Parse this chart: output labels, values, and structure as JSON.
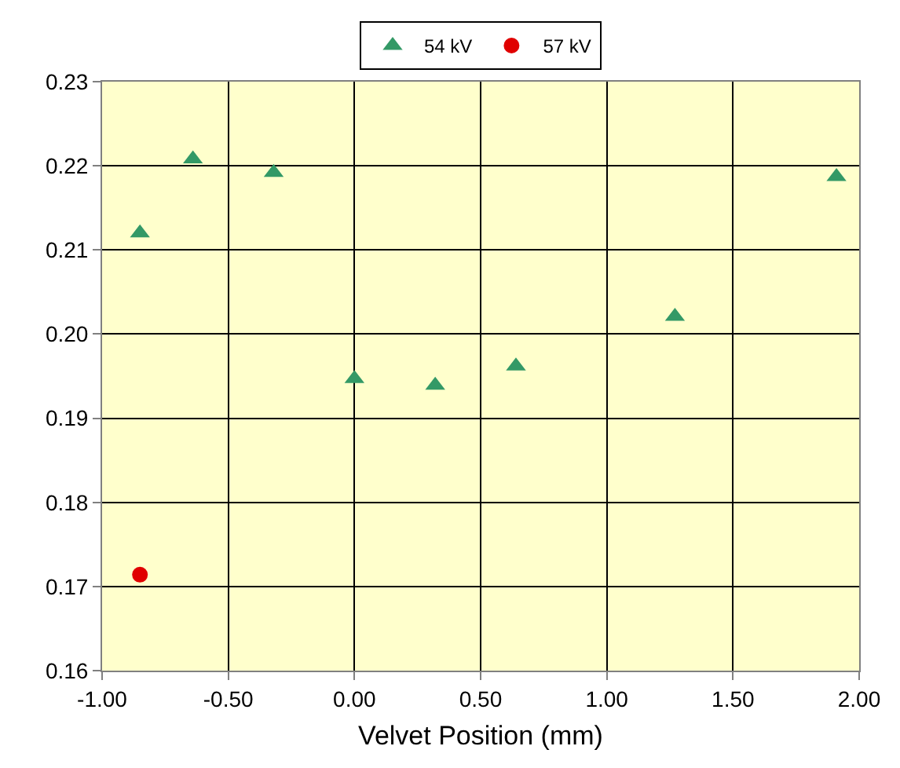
{
  "chart_data": {
    "type": "scatter",
    "xlabel": "Velvet Position (mm)",
    "series": [
      {
        "name": "54 kV",
        "color": "#339966",
        "marker": "triangle",
        "x": [
          -0.85,
          -0.64,
          -0.32,
          0,
          0.32,
          0.64,
          1.27,
          1.91
        ],
        "values": [
          0.212,
          0.2208,
          0.2192,
          0.1947,
          0.1939,
          0.1962,
          0.2021,
          0.2187
        ]
      },
      {
        "name": "57 kV",
        "color": "#e00000",
        "marker": "circle",
        "x": [
          -0.85
        ],
        "values": [
          0.1714
        ]
      }
    ],
    "xlim": [
      -1,
      2
    ],
    "xticks": [
      {
        "value": -1,
        "label": "-1.00"
      },
      {
        "value": -0.5,
        "label": "-0.50"
      },
      {
        "value": 0,
        "label": "0.00"
      },
      {
        "value": 0.5,
        "label": "0.50"
      },
      {
        "value": 1,
        "label": "1.00"
      },
      {
        "value": 1.5,
        "label": "1.50"
      },
      {
        "value": 2,
        "label": "2.00"
      }
    ],
    "ylim": [
      0.16,
      0.23
    ],
    "yticks": [
      {
        "value": 0.16,
        "label": "0.16"
      },
      {
        "value": 0.17,
        "label": "0.17"
      },
      {
        "value": 0.18,
        "label": "0.18"
      },
      {
        "value": 0.19,
        "label": "0.19"
      },
      {
        "value": 0.2,
        "label": "0.20"
      },
      {
        "value": 0.21,
        "label": "0.21"
      },
      {
        "value": 0.22,
        "label": "0.22"
      },
      {
        "value": 0.23,
        "label": "0.23"
      }
    ],
    "grid": true,
    "legend": "top"
  }
}
